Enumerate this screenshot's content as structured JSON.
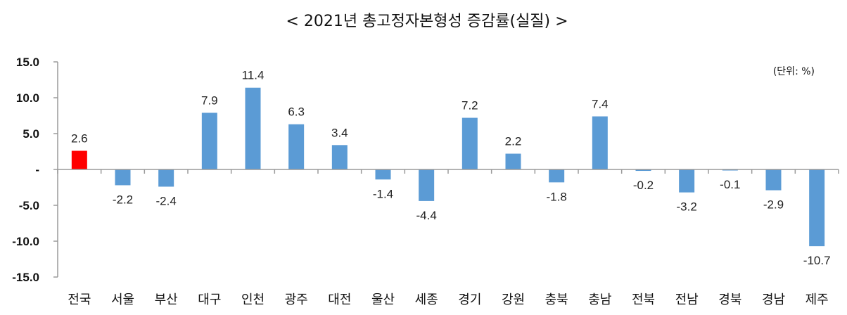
{
  "chart_data": {
    "type": "bar",
    "title": "< 2021년 총고정자본형성 증감률(실질) >",
    "unit_label": "(단위: %)",
    "categories": [
      "전국",
      "서울",
      "부산",
      "대구",
      "인천",
      "광주",
      "대전",
      "울산",
      "세종",
      "경기",
      "강원",
      "충북",
      "충남",
      "전북",
      "전남",
      "경북",
      "경남",
      "제주"
    ],
    "values": [
      2.6,
      -2.2,
      -2.4,
      7.9,
      11.4,
      6.3,
      3.4,
      -1.4,
      -4.4,
      7.2,
      2.2,
      -1.8,
      7.4,
      -0.2,
      -3.2,
      -0.1,
      -2.9,
      -10.7
    ],
    "value_labels": [
      "2.6",
      "-2.2",
      "-2.4",
      "7.9",
      "11.4",
      "6.3",
      "3.4",
      "-1.4",
      "-4.4",
      "7.2",
      "2.2",
      "-1.8",
      "7.4",
      "-0.2",
      "-3.2",
      "-0.1",
      "-2.9",
      "-10.7"
    ],
    "highlight_index": 0,
    "ylim": [
      -15,
      15
    ],
    "y_ticks": [
      15,
      10,
      5,
      0,
      -5,
      -10,
      -15
    ],
    "y_tick_labels": [
      "15.0",
      "10.0",
      "5.0",
      "-",
      "-5.0",
      "-10.0",
      "-15.0"
    ],
    "xlabel": "",
    "ylabel": "",
    "grid": false,
    "colors": {
      "bar": "#5b9bd5",
      "highlight": "#ff0000",
      "axis": "#9a9a9a",
      "text": "#111111"
    }
  }
}
